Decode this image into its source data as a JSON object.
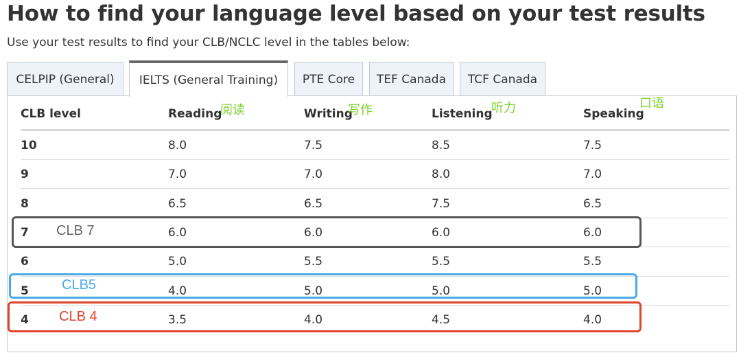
{
  "page": {
    "title": "How to find your language level based on your test results",
    "subtitle": "Use your test results to find your CLB/NCLC level in the tables below:"
  },
  "tabs": [
    {
      "label": "CELPIP (General)",
      "active": false
    },
    {
      "label": "IELTS (General Training)",
      "active": true
    },
    {
      "label": "PTE Core",
      "active": false
    },
    {
      "label": "TEF Canada",
      "active": false
    },
    {
      "label": "TCF Canada",
      "active": false
    }
  ],
  "table": {
    "headers": [
      "CLB level",
      "Reading",
      "Writing",
      "Listening",
      "Speaking"
    ],
    "rows": [
      [
        "10",
        "8.0",
        "7.5",
        "8.5",
        "7.5"
      ],
      [
        "9",
        "7.0",
        "7.0",
        "8.0",
        "7.0"
      ],
      [
        "8",
        "6.5",
        "6.5",
        "7.5",
        "6.5"
      ],
      [
        "7",
        "6.0",
        "6.0",
        "6.0",
        "6.0"
      ],
      [
        "6",
        "5.0",
        "5.5",
        "5.5",
        "5.5"
      ],
      [
        "5",
        "4.0",
        "5.0",
        "5.0",
        "5.0"
      ],
      [
        "4",
        "3.5",
        "4.0",
        "4.5",
        "4.0"
      ]
    ]
  },
  "annotations": {
    "reading_cn": "阅读",
    "writing_cn": "写作",
    "listening_cn": "听力",
    "speaking_cn": "口语",
    "clb7": "CLB 7",
    "clb5": "CLB5",
    "clb4": "CLB 4",
    "colors": {
      "clb7": "#555555",
      "clb5": "#4aa8e8",
      "clb4": "#e0442c",
      "cn": "#7bd12b"
    }
  }
}
